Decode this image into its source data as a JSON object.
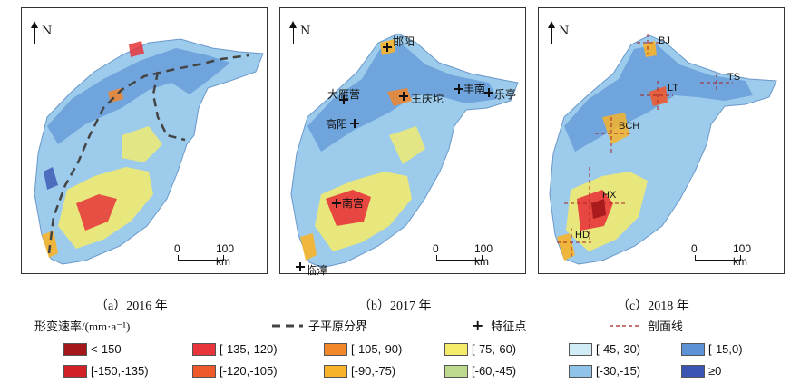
{
  "north_label": "N",
  "scale": {
    "zero": "0",
    "end": "100 km"
  },
  "panels": [
    {
      "caption": "（a）2016 年"
    },
    {
      "caption": "（b）2017 年",
      "points": [
        "邯阳",
        "大雁营",
        "王庆坨",
        "丰南",
        "乐亭",
        "高阳",
        "南宫",
        "临漳"
      ]
    },
    {
      "caption": "（c）2018 年",
      "points": [
        "BJ",
        "LT",
        "TS",
        "BCH",
        "HX",
        "HD"
      ]
    }
  ],
  "legend": {
    "title": "形变速率/(mm·a⁻¹)",
    "subregion_boundary": "子平原分界",
    "feature_point": "特征点",
    "profile_line": "剖面线",
    "classes": [
      {
        "label": "<-150",
        "color": "#a3161a"
      },
      {
        "label": "[-150,-135)",
        "color": "#d12026"
      },
      {
        "label": "[-135,-120)",
        "color": "#e8343a"
      },
      {
        "label": "[-120,-105)",
        "color": "#ef5a2d"
      },
      {
        "label": "[-105,-90)",
        "color": "#f2862a"
      },
      {
        "label": "[-90,-75)",
        "color": "#f7b42a"
      },
      {
        "label": "[-75,-60)",
        "color": "#f4ec6a"
      },
      {
        "label": "[-60,-45)",
        "color": "#bcd98d"
      },
      {
        "label": "[-45,-30)",
        "color": "#d2ecf7"
      },
      {
        "label": "[-30,-15)",
        "color": "#8fc3ea"
      },
      {
        "label": "[-15,0)",
        "color": "#5d93d6"
      },
      {
        "label": "≥0",
        "color": "#3a55b4"
      }
    ]
  }
}
